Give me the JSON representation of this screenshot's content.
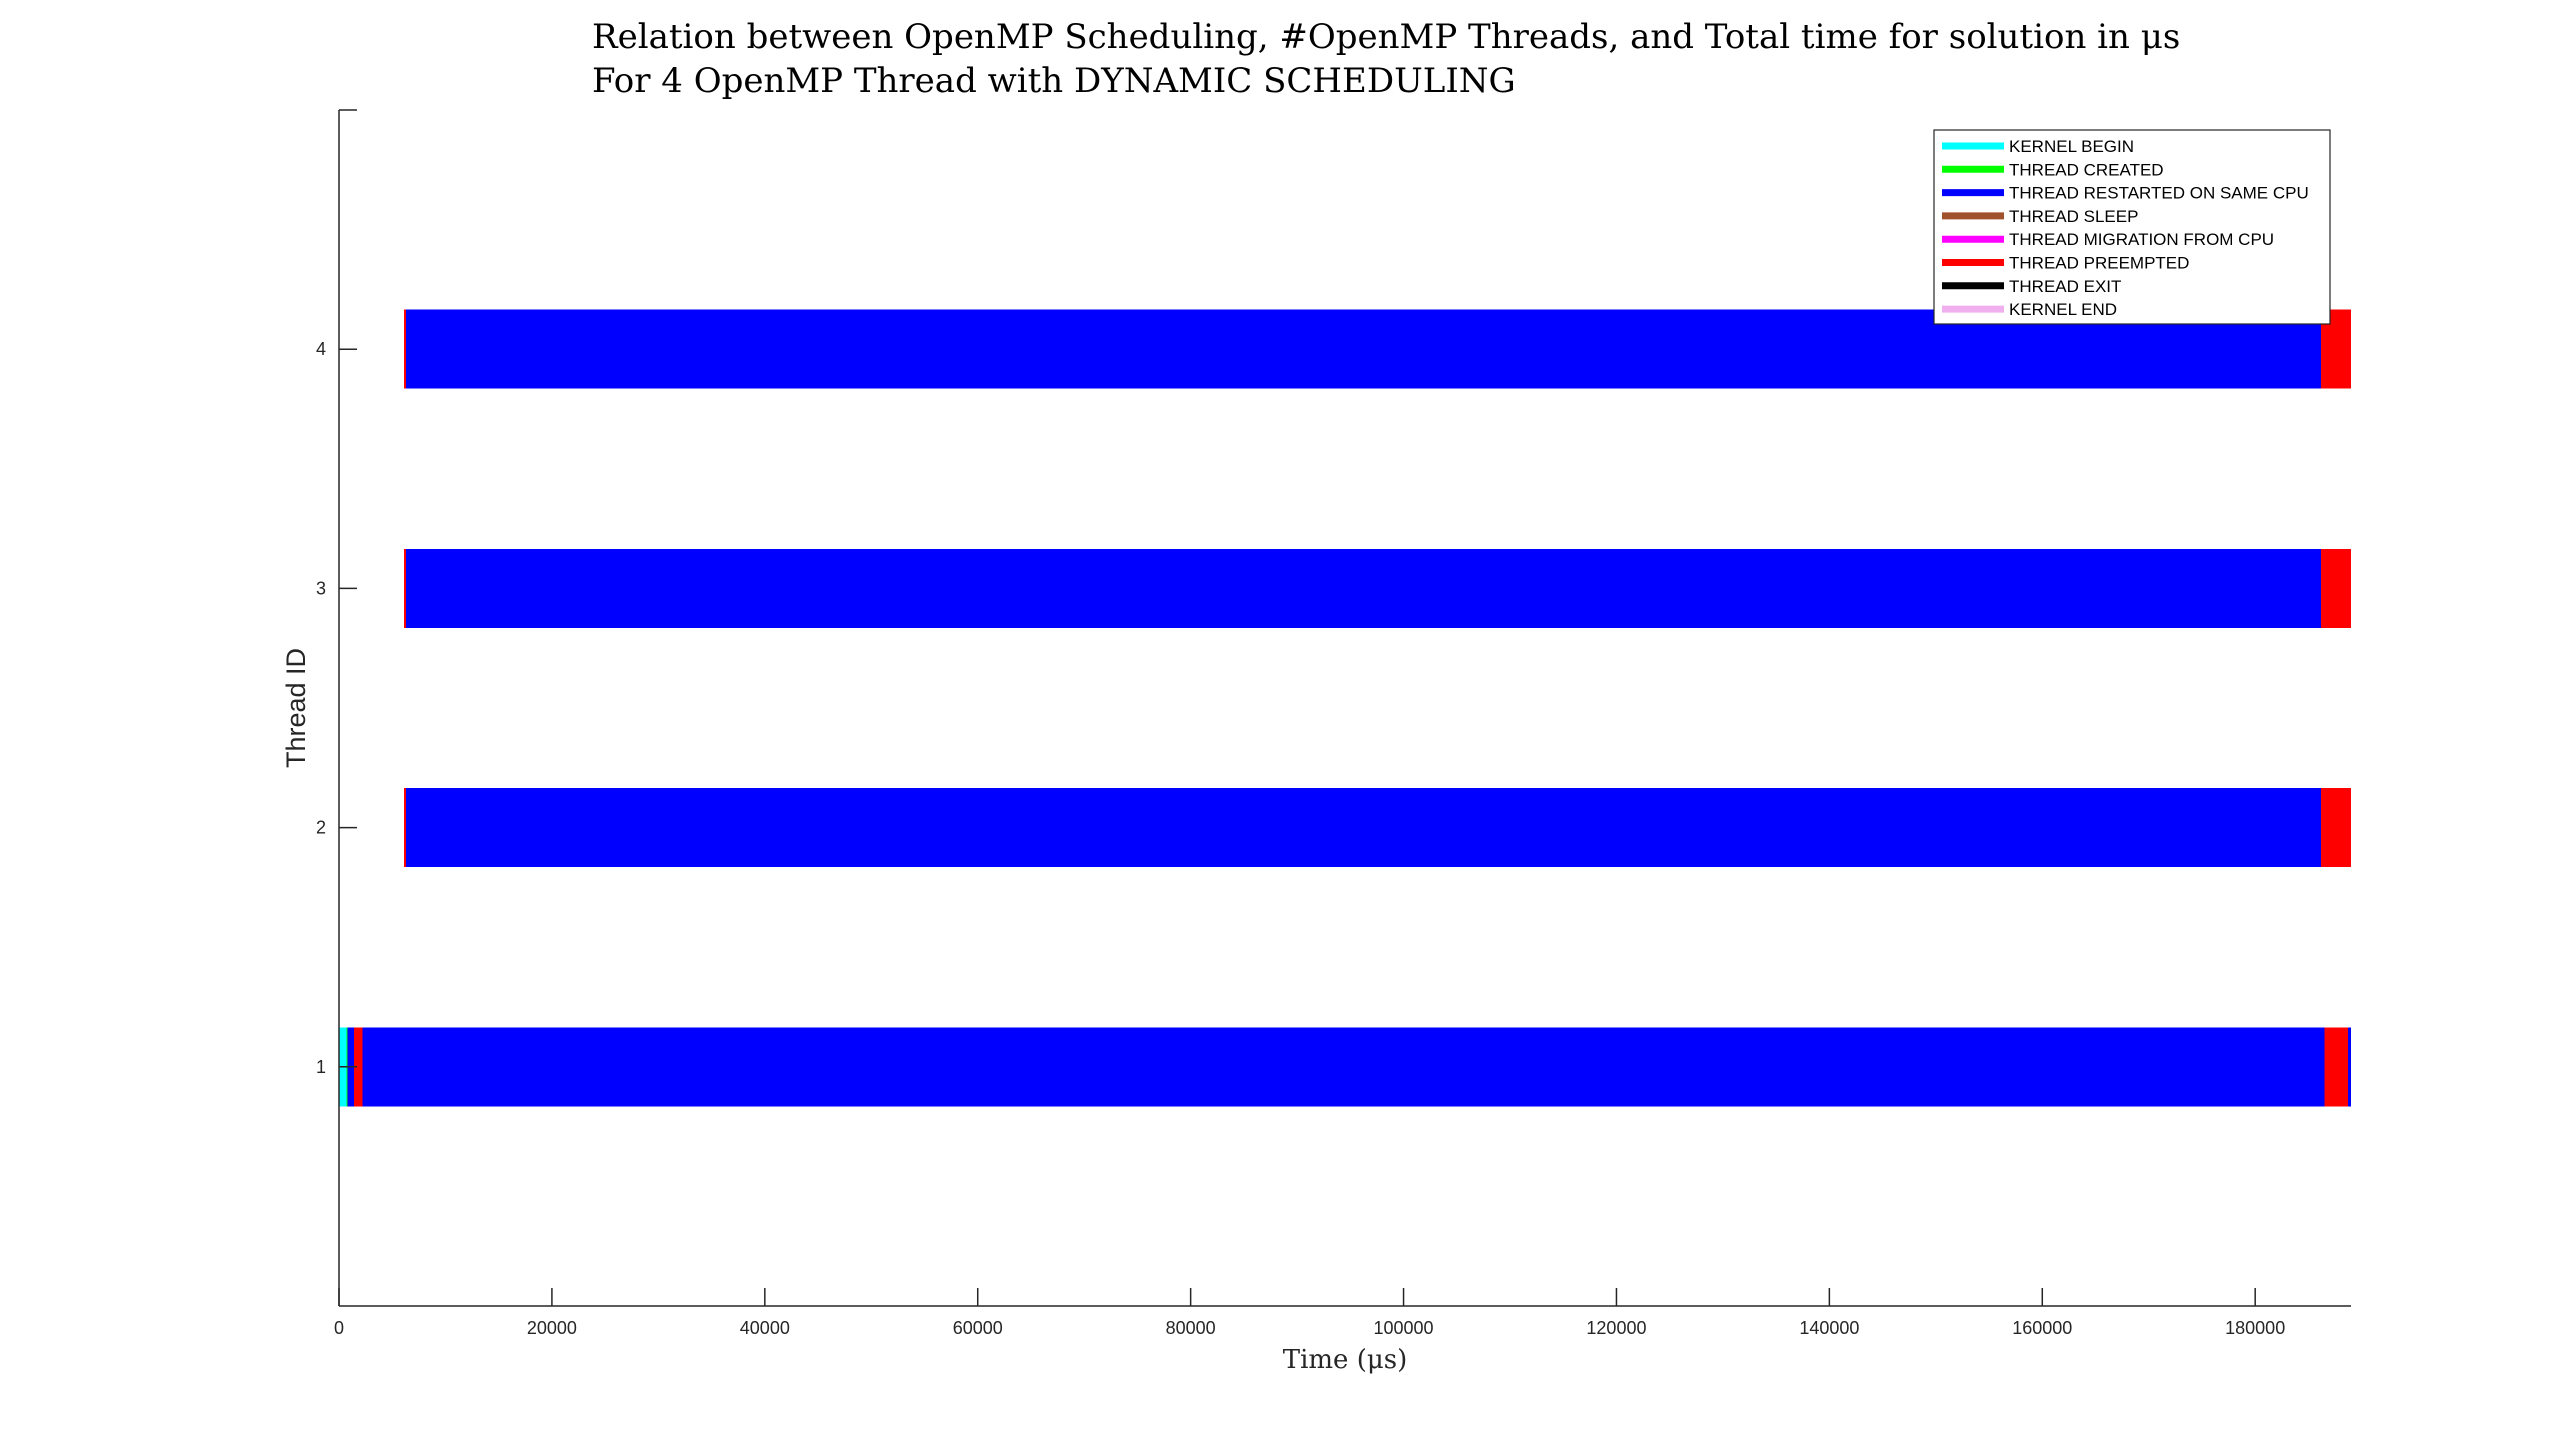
{
  "chart_data": {
    "type": "bar",
    "orientation": "horizontal-timeline",
    "title_line1": "Relation between OpenMP Scheduling, #OpenMP Threads, and Total time for solution in μs",
    "title_line2": "For 4 OpenMP Thread with DYNAMIC SCHEDULING",
    "xlabel": "Time (μs)",
    "ylabel": "Thread ID",
    "xlim": [
      0,
      189000
    ],
    "ylim": [
      0,
      5
    ],
    "x_ticks": [
      "0",
      "20000",
      "40000",
      "60000",
      "80000",
      "100000",
      "120000",
      "140000",
      "160000",
      "180000"
    ],
    "x_tick_values": [
      0,
      20000,
      40000,
      60000,
      80000,
      100000,
      120000,
      140000,
      160000,
      180000
    ],
    "y_ticks": [
      "1",
      "2",
      "3",
      "4"
    ],
    "y_tick_values": [
      1,
      2,
      3,
      4
    ],
    "bar_height": 0.33,
    "grid": false,
    "legend_position": "top-right",
    "legend": [
      {
        "name": "KERNEL BEGIN",
        "color": "#00ffff"
      },
      {
        "name": "THREAD CREATED",
        "color": "#00ff00"
      },
      {
        "name": "THREAD RESTARTED ON SAME CPU",
        "color": "#0000ff"
      },
      {
        "name": "THREAD SLEEP",
        "color": "#a0522d"
      },
      {
        "name": "THREAD MIGRATION FROM CPU",
        "color": "#ff00ff"
      },
      {
        "name": "THREAD PREEMPTED",
        "color": "#ff0000"
      },
      {
        "name": "THREAD EXIT",
        "color": "#000000"
      },
      {
        "name": "KERNEL END",
        "color": "#f0b0f0"
      }
    ],
    "threads": [
      {
        "id": 1,
        "segments": [
          {
            "event": "KERNEL BEGIN",
            "start": 0,
            "end": 700,
            "color": "#00ffff"
          },
          {
            "event": "THREAD CREATED",
            "start": 700,
            "end": 800,
            "color": "#00ff00"
          },
          {
            "event": "THREAD RESTARTED ON SAME CPU",
            "start": 800,
            "end": 1400,
            "color": "#0000ff"
          },
          {
            "event": "THREAD PREEMPTED",
            "start": 1400,
            "end": 2200,
            "color": "#ff0000"
          },
          {
            "event": "THREAD RESTARTED ON SAME CPU",
            "start": 2200,
            "end": 186500,
            "color": "#0000ff"
          },
          {
            "event": "THREAD PREEMPTED",
            "start": 186500,
            "end": 188700,
            "color": "#ff0000"
          },
          {
            "event": "THREAD RESTARTED ON SAME CPU",
            "start": 188700,
            "end": 189000,
            "color": "#0000ff"
          }
        ]
      },
      {
        "id": 2,
        "segments": [
          {
            "event": "THREAD PREEMPTED",
            "start": 6100,
            "end": 6300,
            "color": "#ff0000"
          },
          {
            "event": "THREAD RESTARTED ON SAME CPU",
            "start": 6300,
            "end": 186200,
            "color": "#0000ff"
          },
          {
            "event": "THREAD PREEMPTED",
            "start": 186200,
            "end": 189000,
            "color": "#ff0000"
          }
        ]
      },
      {
        "id": 3,
        "segments": [
          {
            "event": "THREAD PREEMPTED",
            "start": 6100,
            "end": 6300,
            "color": "#ff0000"
          },
          {
            "event": "THREAD RESTARTED ON SAME CPU",
            "start": 6300,
            "end": 186200,
            "color": "#0000ff"
          },
          {
            "event": "THREAD PREEMPTED",
            "start": 186200,
            "end": 189000,
            "color": "#ff0000"
          }
        ]
      },
      {
        "id": 4,
        "segments": [
          {
            "event": "THREAD PREEMPTED",
            "start": 6100,
            "end": 6300,
            "color": "#ff0000"
          },
          {
            "event": "THREAD RESTARTED ON SAME CPU",
            "start": 6300,
            "end": 186200,
            "color": "#0000ff"
          },
          {
            "event": "THREAD PREEMPTED",
            "start": 186200,
            "end": 189000,
            "color": "#ff0000"
          }
        ]
      }
    ]
  }
}
